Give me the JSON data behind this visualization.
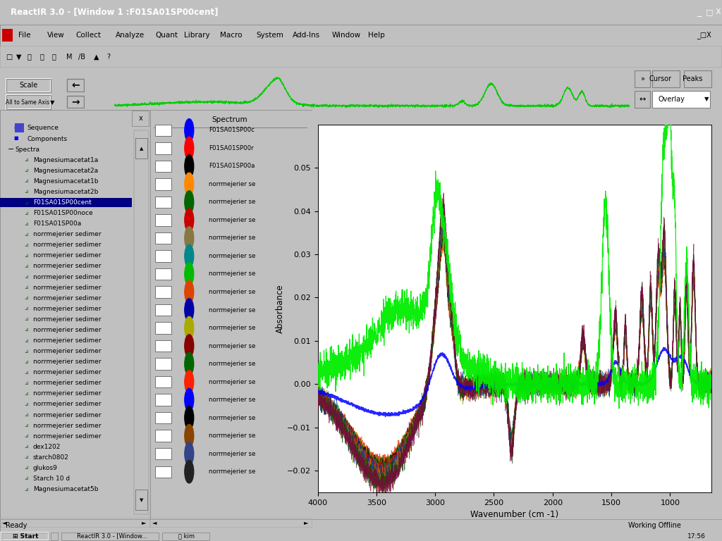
{
  "title": "ReactIR 3.0 - [Window 1 :F01SA01SP00cent]",
  "xlabel": "Wavenumber (cm -1)",
  "ylabel": "Absorbance",
  "xlim": [
    4000,
    650
  ],
  "ylim": [
    -0.025,
    0.06
  ],
  "yticks": [
    -0.02,
    -0.01,
    0.0,
    0.01,
    0.02,
    0.03,
    0.04,
    0.05
  ],
  "xticks": [
    4000,
    3500,
    3000,
    2500,
    2000,
    1500,
    1000
  ],
  "bg_color": "#c0c0c0",
  "title_bar_color": "#000080",
  "plot_bg": "#ffffff",
  "red_border": "#ff0000",
  "menu_items": [
    "File",
    "View",
    "Collect",
    "Analyze",
    "Quant",
    "Library",
    "Macro",
    "System",
    "Add-Ins",
    "Window",
    "Help"
  ],
  "left_tree": [
    "Sequence",
    "Components",
    "Spectra",
    "Magnesiumacetat1a",
    "Magnesiumacetat2a",
    "Magnesiumacetat1b",
    "Magnesiumacetat2b",
    "F01SA01SP00cent",
    "F01SA01SP00noce",
    "F01SA01SP00a",
    "norrmejerier sedimer",
    "norrmejerier sedimer",
    "norrmejerier sedimer",
    "norrmejerier sedimer",
    "norrmejerier sedimer",
    "norrmejerier sedimer",
    "norrmejerier sedimer",
    "norrmejerier sedimer",
    "norrmejerier sedimer",
    "norrmejerier sedimer",
    "norrmejerier sedimer",
    "norrmejerier sedimer",
    "norrmejerier sedimer",
    "norrmejerier sedimer",
    "norrmejerier sedimer",
    "norrmejerier sedimer",
    "norrmejerier sedimer",
    "norrmejerier sedimer",
    "norrmejerier sedimer",
    "norrmejerier sedimer",
    "dex1202",
    "starch0802",
    "glukos9",
    "Starch 10 d",
    "Magnesiumacetat5b"
  ],
  "spectrum_panel_labels": [
    "F01SA01SP00c",
    "F01SA01SP00r",
    "F01SA01SP00a",
    "norrmejerier se",
    "norrmejerier se",
    "norrmejerier se",
    "norrmejerier se",
    "norrmejerier se",
    "norrmejerier se",
    "norrmejerier se",
    "norrmejerier se",
    "norrmejerier se",
    "norrmejerier se",
    "norrmejerier se",
    "norrmejerier se",
    "norrmejerier se",
    "norrmejerier se",
    "norrmejerier se",
    "norrmejerier se",
    "norrmejerier se"
  ],
  "spectrum_dot_colors": [
    "#0000ff",
    "#ff0000",
    "#000000",
    "#ff8800",
    "#006600",
    "#cc0000",
    "#887744",
    "#008888",
    "#00bb00",
    "#dd4400",
    "#0000aa",
    "#aaaa00",
    "#880000",
    "#006600",
    "#ff2200",
    "#0000ff",
    "#000000",
    "#884400",
    "#334488",
    "#222222"
  ],
  "series_colors": [
    "#ff0000",
    "#cc6600",
    "#008800",
    "#000000",
    "#886600",
    "#aa0000",
    "#008866",
    "#660088",
    "#ff4400",
    "#0044aa",
    "#aa4400",
    "#004488",
    "#888800",
    "#004400",
    "#880044"
  ],
  "status_bar_text": "Ready",
  "status_right": "Working Offline",
  "taskbar_time": "17:56",
  "overlay_text": "Overlay"
}
